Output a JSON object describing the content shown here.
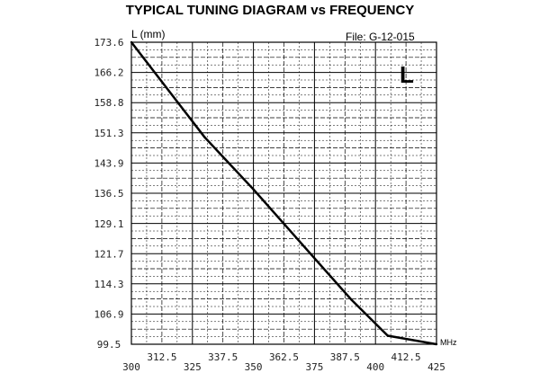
{
  "chart_data": {
    "type": "line",
    "title": "TYPICAL TUNING DIAGRAM vs FREQUENCY",
    "ylabel": "L (mm)",
    "file_label": "File:  G-12-015",
    "corner_letter": "L",
    "xunit": "MHz",
    "xlim": [
      300,
      425
    ],
    "ylim": [
      99.5,
      173.6
    ],
    "x_ticks_bottom": [
      "300",
      "325",
      "350",
      "375",
      "400",
      "425"
    ],
    "x_ticks_top": [
      "312.5",
      "337.5",
      "362.5",
      "387.5",
      "412.5"
    ],
    "y_ticks": [
      "173.6",
      "166.2",
      "158.8",
      "151.3",
      "143.9",
      "136.5",
      "129.1",
      "121.7",
      "114.3",
      "106.9",
      "99.5"
    ],
    "grid": true,
    "series": [
      {
        "x": [
          300,
          330,
          350,
          370,
          390,
          405,
          425
        ],
        "y": [
          173.6,
          150.3,
          137.5,
          124.0,
          110.5,
          101.6,
          99.5
        ]
      }
    ]
  },
  "colors": {
    "line": "#000000",
    "grid": "#000000",
    "background": "#ffffff"
  }
}
